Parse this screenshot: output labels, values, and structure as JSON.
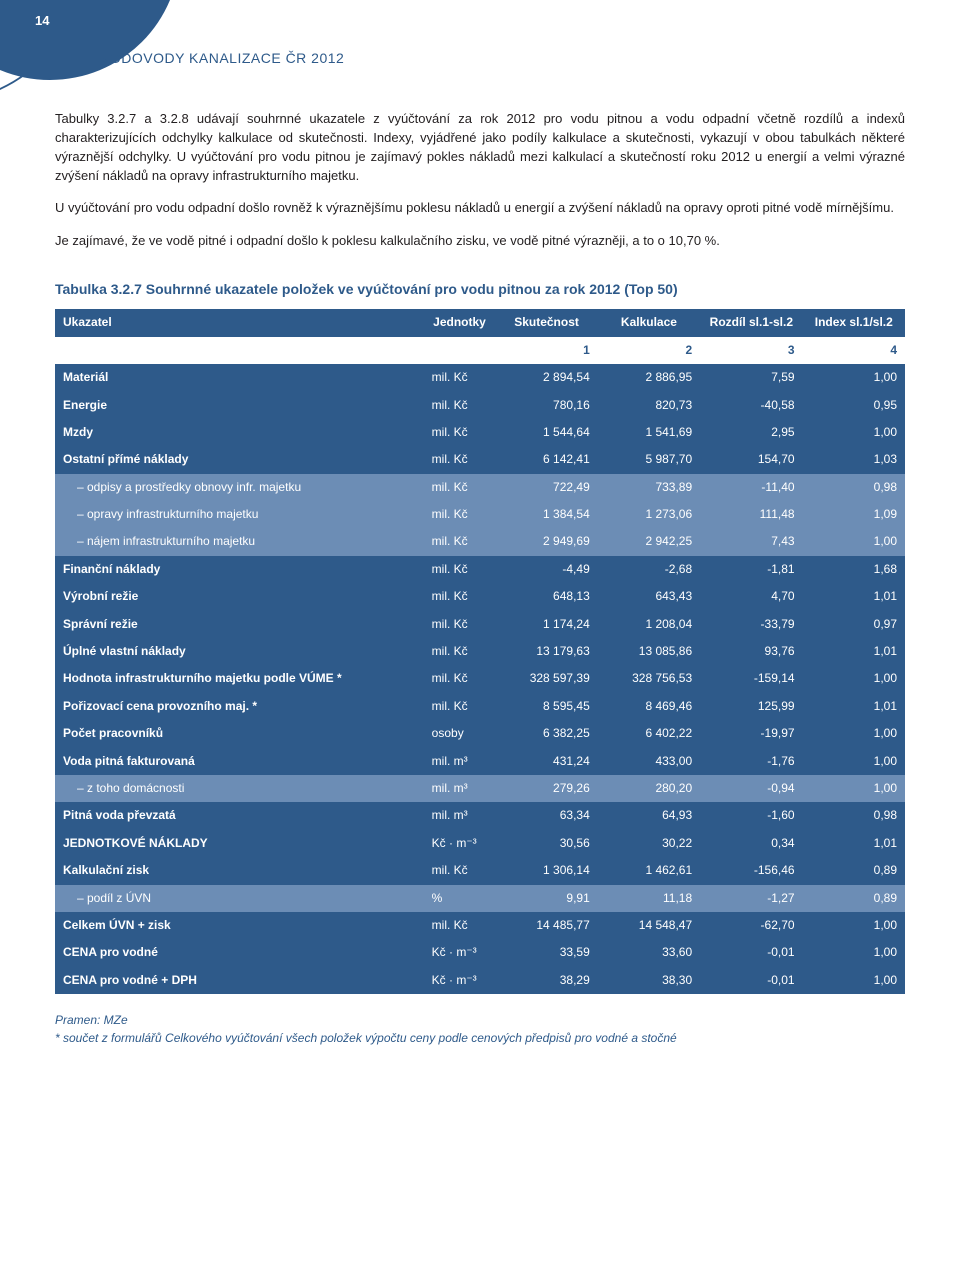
{
  "page_number": "14",
  "doc_title": "VODOVODY KANALIZACE ČR 2012",
  "paragraphs": [
    "Tabulky 3.2.7 a 3.2.8 udávají souhrnné ukazatele z vyúčtování za rok 2012 pro vodu pitnou a vodu odpadní včetně rozdílů a indexů charakterizujících odchylky kalkulace od skutečnosti. Indexy, vyjádřené jako podíly kalkulace a skutečnosti, vykazují v obou tabulkách některé výraznější odchylky. U vyúčtování pro vodu pitnou je zajímavý pokles nákladů mezi kalkulací a skutečností roku 2012 u energií a velmi výrazné zvýšení nákladů na opravy infrastrukturního majetku.",
    "U vyúčtování pro vodu odpadní došlo rovněž k výraznějšímu poklesu nákladů u energií a zvýšení nákladů na opravy oproti pitné vodě mírnějšímu.",
    "Je zajímavé, že ve vodě pitné i odpadní došlo k poklesu kalkulačního zisku, ve vodě pitné výrazněji, a to o 10,70 %."
  ],
  "table_title": "Tabulka 3.2.7 Souhrnné ukazatele položek ve vyúčtování pro vodu pitnou za rok 2012 (Top 50)",
  "headers": {
    "ukazatel": "Ukazatel",
    "jednotky": "Jednotky",
    "skutecnost": "Skutečnost",
    "kalkulace": "Kalkulace",
    "rozdil": "Rozdíl sl.1-sl.2",
    "index": "Index sl.1/sl.2"
  },
  "col_nums": [
    "1",
    "2",
    "3",
    "4"
  ],
  "rows": [
    {
      "cls": "row-dark",
      "label": "Materiál",
      "unit": "mil. Kč",
      "c": [
        "2 894,54",
        "2 886,95",
        "7,59",
        "1,00"
      ]
    },
    {
      "cls": "row-dark",
      "label": "Energie",
      "unit": "mil. Kč",
      "c": [
        "780,16",
        "820,73",
        "-40,58",
        "0,95"
      ]
    },
    {
      "cls": "row-dark",
      "label": "Mzdy",
      "unit": "mil. Kč",
      "c": [
        "1 544,64",
        "1 541,69",
        "2,95",
        "1,00"
      ]
    },
    {
      "cls": "row-dark",
      "label": "Ostatní přímé náklady",
      "unit": "mil. Kč",
      "c": [
        "6 142,41",
        "5 987,70",
        "154,70",
        "1,03"
      ]
    },
    {
      "cls": "row-light",
      "indent": true,
      "label": "– odpisy a prostředky obnovy infr. majetku",
      "unit": "mil. Kč",
      "c": [
        "722,49",
        "733,89",
        "-11,40",
        "0,98"
      ]
    },
    {
      "cls": "row-light",
      "indent": true,
      "label": "– opravy infrastrukturního majetku",
      "unit": "mil. Kč",
      "c": [
        "1 384,54",
        "1 273,06",
        "111,48",
        "1,09"
      ]
    },
    {
      "cls": "row-light",
      "indent": true,
      "label": "– nájem infrastrukturního majetku",
      "unit": "mil. Kč",
      "c": [
        "2 949,69",
        "2 942,25",
        "7,43",
        "1,00"
      ]
    },
    {
      "cls": "row-dark",
      "label": "Finanční náklady",
      "unit": "mil. Kč",
      "c": [
        "-4,49",
        "-2,68",
        "-1,81",
        "1,68"
      ]
    },
    {
      "cls": "row-dark",
      "label": "Výrobní režie",
      "unit": "mil. Kč",
      "c": [
        "648,13",
        "643,43",
        "4,70",
        "1,01"
      ]
    },
    {
      "cls": "row-dark",
      "label": "Správní režie",
      "unit": "mil. Kč",
      "c": [
        "1 174,24",
        "1 208,04",
        "-33,79",
        "0,97"
      ]
    },
    {
      "cls": "row-dark",
      "label": "Úplné vlastní náklady",
      "unit": "mil. Kč",
      "c": [
        "13 179,63",
        "13 085,86",
        "93,76",
        "1,01"
      ]
    },
    {
      "cls": "row-dark",
      "label": "Hodnota infrastrukturního majetku podle VÚME *",
      "unit": "mil. Kč",
      "c": [
        "328 597,39",
        "328 756,53",
        "-159,14",
        "1,00"
      ]
    },
    {
      "cls": "row-dark",
      "label": "Pořizovací cena provozního maj. *",
      "unit": "mil. Kč",
      "c": [
        "8 595,45",
        "8 469,46",
        "125,99",
        "1,01"
      ]
    },
    {
      "cls": "row-dark",
      "label": "Počet pracovníků",
      "unit": "osoby",
      "c": [
        "6 382,25",
        "6 402,22",
        "-19,97",
        "1,00"
      ]
    },
    {
      "cls": "row-dark",
      "label": "Voda pitná fakturovaná",
      "unit": "mil. m³",
      "c": [
        "431,24",
        "433,00",
        "-1,76",
        "1,00"
      ]
    },
    {
      "cls": "row-light",
      "indent": true,
      "label": "– z toho domácnosti",
      "unit": "mil. m³",
      "c": [
        "279,26",
        "280,20",
        "-0,94",
        "1,00"
      ]
    },
    {
      "cls": "row-dark",
      "label": "Pitná voda převzatá",
      "unit": "mil. m³",
      "c": [
        "63,34",
        "64,93",
        "-1,60",
        "0,98"
      ]
    },
    {
      "cls": "row-dark",
      "label": "JEDNOTKOVÉ NÁKLADY",
      "unit": "Kč · m⁻³",
      "c": [
        "30,56",
        "30,22",
        "0,34",
        "1,01"
      ]
    },
    {
      "cls": "row-dark",
      "label": "Kalkulační zisk",
      "unit": "mil. Kč",
      "c": [
        "1 306,14",
        "1 462,61",
        "-156,46",
        "0,89"
      ]
    },
    {
      "cls": "row-light",
      "indent": true,
      "label": "– podíl z ÚVN",
      "unit": "%",
      "c": [
        "9,91",
        "11,18",
        "-1,27",
        "0,89"
      ]
    },
    {
      "cls": "row-dark",
      "label": "Celkem ÚVN + zisk",
      "unit": "mil. Kč",
      "c": [
        "14 485,77",
        "14 548,47",
        "-62,70",
        "1,00"
      ]
    },
    {
      "cls": "row-dark",
      "label": "CENA pro vodné",
      "unit": "Kč · m⁻³",
      "c": [
        "33,59",
        "33,60",
        "-0,01",
        "1,00"
      ]
    },
    {
      "cls": "row-dark",
      "label": "CENA pro vodné + DPH",
      "unit": "Kč · m⁻³",
      "c": [
        "38,29",
        "38,30",
        "-0,01",
        "1,00"
      ]
    }
  ],
  "footnotes": {
    "source": "Pramen: MZe",
    "ast": "* součet z formulářů Celkového vyúčtování všech položek výpočtu ceny podle cenových předpisů pro vodné a stočné"
  },
  "colors": {
    "brand": "#2e5a8a",
    "row_light": "#6c8db5",
    "text": "#231f20",
    "bg": "#ffffff"
  }
}
